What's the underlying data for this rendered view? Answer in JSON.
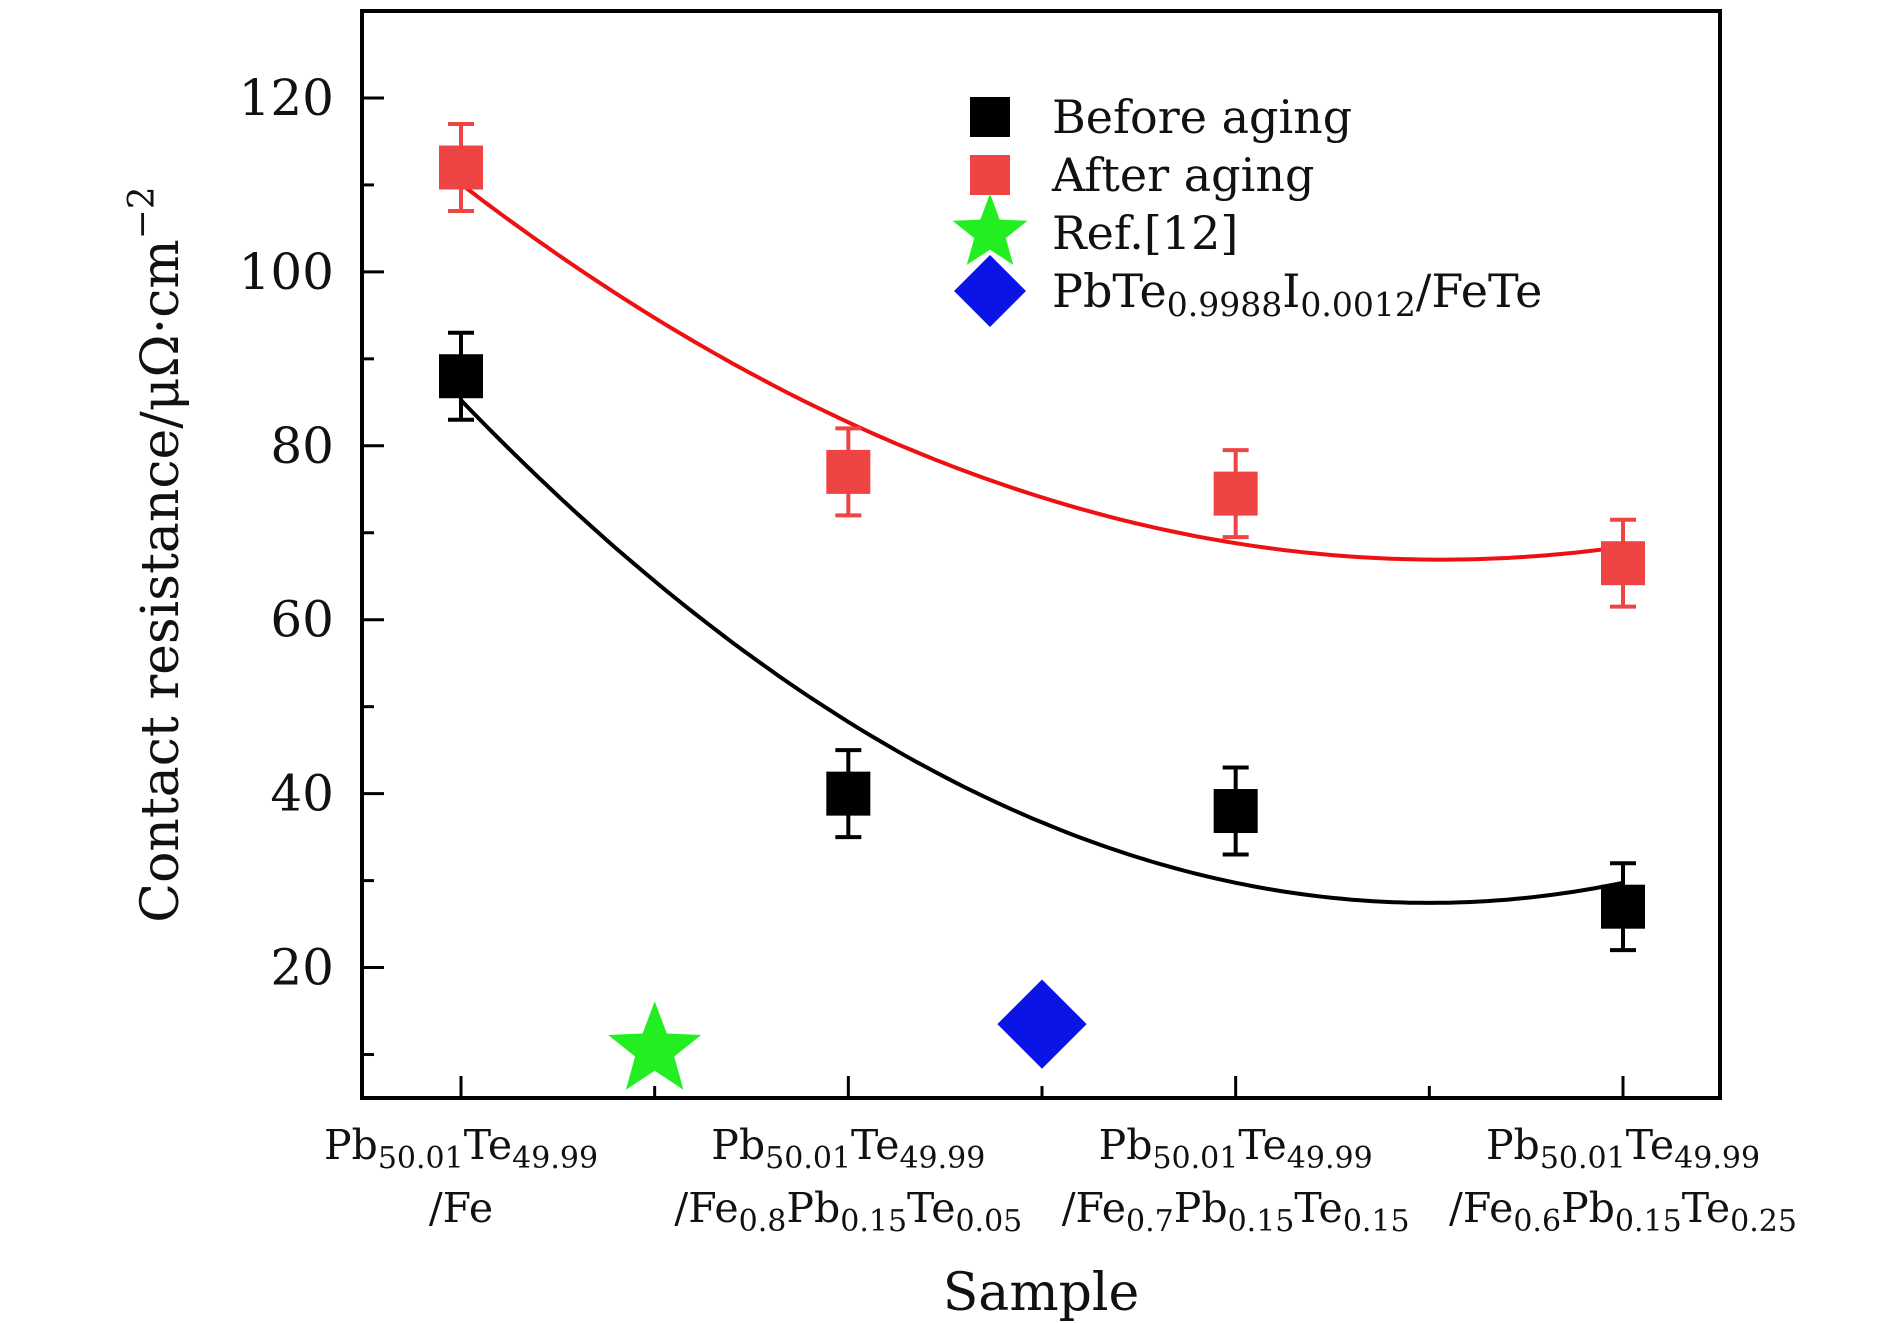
{
  "chart_data": {
    "type": "scatter",
    "xlabel": "Sample",
    "ylabel": "Contact resistance/μΩ·cm",
    "ylabel_sup": "−2",
    "ylim": [
      5,
      130
    ],
    "yticks": [
      "20",
      "40",
      "60",
      "80",
      "100",
      "120"
    ],
    "grid": false,
    "legend_position": "top-right",
    "categories": [
      {
        "line1": [
          {
            "t": "Pb"
          },
          {
            "t": "50.01",
            "sub": true
          },
          {
            "t": "Te"
          },
          {
            "t": "49.99",
            "sub": true
          }
        ],
        "line2": [
          {
            "t": "/Fe"
          }
        ]
      },
      {
        "line1": [
          {
            "t": "Pb"
          },
          {
            "t": "50.01",
            "sub": true
          },
          {
            "t": "Te"
          },
          {
            "t": "49.99",
            "sub": true
          }
        ],
        "line2": [
          {
            "t": "/Fe"
          },
          {
            "t": "0.8",
            "sub": true
          },
          {
            "t": "Pb"
          },
          {
            "t": "0.15",
            "sub": true
          },
          {
            "t": "Te"
          },
          {
            "t": "0.05",
            "sub": true
          }
        ]
      },
      {
        "line1": [
          {
            "t": "Pb"
          },
          {
            "t": "50.01",
            "sub": true
          },
          {
            "t": "Te"
          },
          {
            "t": "49.99",
            "sub": true
          }
        ],
        "line2": [
          {
            "t": "/Fe"
          },
          {
            "t": "0.7",
            "sub": true
          },
          {
            "t": "Pb"
          },
          {
            "t": "0.15",
            "sub": true
          },
          {
            "t": "Te"
          },
          {
            "t": "0.15",
            "sub": true
          }
        ]
      },
      {
        "line1": [
          {
            "t": "Pb"
          },
          {
            "t": "50.01",
            "sub": true
          },
          {
            "t": "Te"
          },
          {
            "t": "49.99",
            "sub": true
          }
        ],
        "line2": [
          {
            "t": "/Fe"
          },
          {
            "t": "0.6",
            "sub": true
          },
          {
            "t": "Pb"
          },
          {
            "t": "0.15",
            "sub": true
          },
          {
            "t": "Te"
          },
          {
            "t": "0.25",
            "sub": true
          }
        ]
      }
    ],
    "series": [
      {
        "name": "Before aging",
        "marker": "square",
        "color": "#000000",
        "x": [
          1,
          2,
          3,
          4
        ],
        "y": [
          88,
          40,
          38,
          27
        ],
        "error": [
          5,
          5,
          5,
          5
        ],
        "fit_color": "#000000"
      },
      {
        "name": "After aging",
        "marker": "square",
        "color": "#ef4444",
        "x": [
          1,
          2,
          3,
          4
        ],
        "y": [
          112,
          77,
          74.5,
          66.5
        ],
        "error": [
          5,
          5,
          5,
          5
        ],
        "fit_color": "#ee1111"
      },
      {
        "name": "Ref.[12]",
        "marker": "star",
        "color": "#22ee22",
        "x": [
          1.5
        ],
        "y": [
          10.5
        ]
      },
      {
        "name_parts": [
          {
            "t": "PbTe"
          },
          {
            "t": "0.9988",
            "sub": true
          },
          {
            "t": "I"
          },
          {
            "t": "0.0012",
            "sub": true
          },
          {
            "t": "/FeTe"
          }
        ],
        "marker": "diamond",
        "color": "#0a14e6",
        "x": [
          2.5
        ],
        "y": [
          13.5
        ]
      }
    ]
  }
}
